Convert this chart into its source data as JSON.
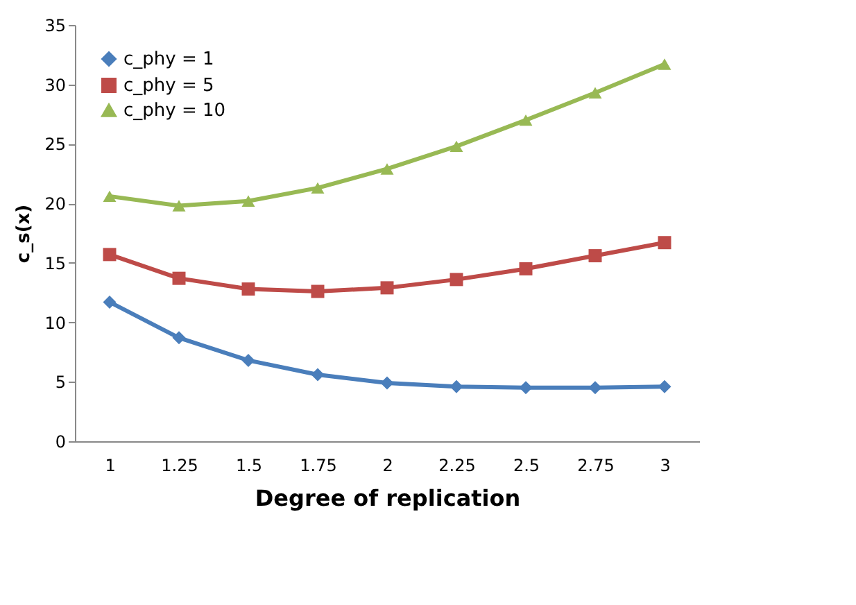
{
  "chart_data": {
    "type": "line",
    "xlabel": "Degree of replication",
    "ylabel": "c_s(x)",
    "categories": [
      "1",
      "1.25",
      "1.5",
      "1.75",
      "2",
      "2.25",
      "2.5",
      "2.75",
      "3"
    ],
    "series": [
      {
        "name": "c_phy = 1",
        "color": "#4a7ebb",
        "marker": "diamond",
        "values": [
          11.7,
          8.7,
          6.8,
          5.6,
          4.9,
          4.6,
          4.5,
          4.5,
          4.6
        ]
      },
      {
        "name": "c_phy = 5",
        "color": "#be4b48",
        "marker": "square",
        "values": [
          15.7,
          13.7,
          12.8,
          12.6,
          12.9,
          13.6,
          14.5,
          15.6,
          16.7
        ]
      },
      {
        "name": "c_phy = 10",
        "color": "#98b954",
        "marker": "triangle",
        "values": [
          20.6,
          19.8,
          20.2,
          21.3,
          22.9,
          24.8,
          27.0,
          29.3,
          31.7
        ]
      }
    ],
    "ylim": [
      0,
      35
    ],
    "yticks": [
      0,
      5,
      10,
      15,
      20,
      25,
      30,
      35
    ],
    "grid": false,
    "legend": "top left",
    "line_style": "solid"
  }
}
